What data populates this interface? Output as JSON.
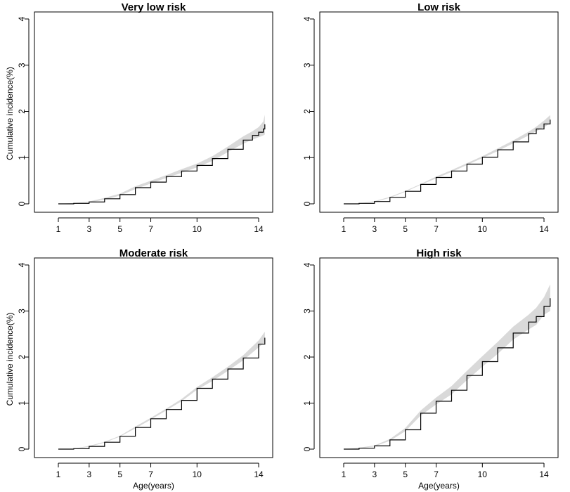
{
  "chart_data": [
    {
      "type": "line",
      "title": "Very low risk",
      "xlabel": "",
      "ylabel": "Cumulative incidence(%)",
      "xlim": [
        1,
        14.5
      ],
      "ylim": [
        0,
        4
      ],
      "xticks": [
        1,
        3,
        5,
        7,
        10,
        14
      ],
      "yticks": [
        0,
        1,
        2,
        3,
        4
      ],
      "grid": false,
      "series": [
        {
          "name": "estimate",
          "x": [
            1,
            2,
            3,
            4,
            5,
            6,
            7,
            8,
            9,
            10,
            11,
            12,
            13,
            13.6,
            14,
            14.3,
            14.4
          ],
          "y": [
            0,
            0.01,
            0.04,
            0.11,
            0.2,
            0.35,
            0.47,
            0.59,
            0.71,
            0.83,
            0.98,
            1.18,
            1.38,
            1.48,
            1.55,
            1.62,
            1.72
          ]
        },
        {
          "name": "ci_lower",
          "x": [
            1,
            2,
            3,
            4,
            5,
            6,
            7,
            8,
            9,
            10,
            11,
            12,
            13,
            13.6,
            14,
            14.3,
            14.4
          ],
          "y": [
            0,
            0.0,
            0.03,
            0.09,
            0.18,
            0.32,
            0.44,
            0.56,
            0.67,
            0.79,
            0.93,
            1.12,
            1.3,
            1.39,
            1.44,
            1.48,
            1.5
          ]
        },
        {
          "name": "ci_upper",
          "x": [
            1,
            2,
            3,
            4,
            5,
            6,
            7,
            8,
            9,
            10,
            11,
            12,
            13,
            13.6,
            14,
            14.3,
            14.4
          ],
          "y": [
            0,
            0.02,
            0.05,
            0.13,
            0.22,
            0.38,
            0.5,
            0.62,
            0.75,
            0.87,
            1.03,
            1.24,
            1.46,
            1.57,
            1.66,
            1.78,
            1.93
          ]
        }
      ]
    },
    {
      "type": "line",
      "title": "Low risk",
      "xlabel": "",
      "ylabel": "",
      "xlim": [
        1,
        14.5
      ],
      "ylim": [
        0,
        4
      ],
      "xticks": [
        1,
        3,
        5,
        7,
        10,
        14
      ],
      "yticks": [
        0,
        1,
        2,
        3,
        4
      ],
      "grid": false,
      "series": [
        {
          "name": "estimate",
          "x": [
            1,
            2,
            3,
            4,
            5,
            6,
            7,
            8,
            9,
            10,
            11,
            12,
            13,
            13.5,
            14,
            14.4
          ],
          "y": [
            0,
            0.01,
            0.05,
            0.14,
            0.27,
            0.42,
            0.57,
            0.71,
            0.86,
            1.01,
            1.17,
            1.34,
            1.52,
            1.62,
            1.73,
            1.82
          ]
        },
        {
          "name": "ci_lower",
          "x": [
            1,
            2,
            3,
            4,
            5,
            6,
            7,
            8,
            9,
            10,
            11,
            12,
            13,
            13.5,
            14,
            14.4
          ],
          "y": [
            0,
            0.01,
            0.04,
            0.13,
            0.26,
            0.41,
            0.55,
            0.69,
            0.84,
            0.99,
            1.14,
            1.31,
            1.48,
            1.57,
            1.66,
            1.74
          ]
        },
        {
          "name": "ci_upper",
          "x": [
            1,
            2,
            3,
            4,
            5,
            6,
            7,
            8,
            9,
            10,
            11,
            12,
            13,
            13.5,
            14,
            14.4
          ],
          "y": [
            0,
            0.01,
            0.06,
            0.15,
            0.28,
            0.43,
            0.59,
            0.73,
            0.88,
            1.03,
            1.2,
            1.37,
            1.56,
            1.67,
            1.8,
            1.92
          ]
        }
      ]
    },
    {
      "type": "line",
      "title": "Moderate risk",
      "xlabel": "Age(years)",
      "ylabel": "Cumulative incidence(%)",
      "xlim": [
        1,
        14.5
      ],
      "ylim": [
        0,
        4
      ],
      "xticks": [
        1,
        3,
        5,
        7,
        10,
        14
      ],
      "yticks": [
        0,
        1,
        2,
        3,
        4
      ],
      "grid": false,
      "series": [
        {
          "name": "estimate",
          "x": [
            1,
            2,
            3,
            4,
            5,
            6,
            7,
            8,
            9,
            10,
            11,
            12,
            13,
            14,
            14.4
          ],
          "y": [
            0,
            0.01,
            0.06,
            0.15,
            0.28,
            0.47,
            0.66,
            0.86,
            1.06,
            1.32,
            1.52,
            1.74,
            1.98,
            2.28,
            2.42
          ]
        },
        {
          "name": "ci_lower",
          "x": [
            1,
            2,
            3,
            4,
            5,
            6,
            7,
            8,
            9,
            10,
            11,
            12,
            13,
            14,
            14.4
          ],
          "y": [
            0,
            0.01,
            0.05,
            0.14,
            0.27,
            0.45,
            0.64,
            0.84,
            1.04,
            1.29,
            1.48,
            1.7,
            1.93,
            2.21,
            2.32
          ]
        },
        {
          "name": "ci_upper",
          "x": [
            1,
            2,
            3,
            4,
            5,
            6,
            7,
            8,
            9,
            10,
            11,
            12,
            13,
            14,
            14.4
          ],
          "y": [
            0,
            0.01,
            0.07,
            0.16,
            0.29,
            0.49,
            0.68,
            0.88,
            1.09,
            1.35,
            1.56,
            1.79,
            2.04,
            2.36,
            2.55
          ]
        }
      ]
    },
    {
      "type": "line",
      "title": "High risk",
      "xlabel": "Age(years)",
      "ylabel": "",
      "xlim": [
        1,
        14.5
      ],
      "ylim": [
        0,
        4
      ],
      "xticks": [
        1,
        3,
        5,
        7,
        10,
        14
      ],
      "yticks": [
        0,
        1,
        2,
        3,
        4
      ],
      "grid": false,
      "series": [
        {
          "name": "estimate",
          "x": [
            1,
            2,
            3,
            4,
            5,
            6,
            7,
            8,
            9,
            10,
            11,
            12,
            13,
            13.5,
            14,
            14.4
          ],
          "y": [
            0,
            0.02,
            0.07,
            0.2,
            0.42,
            0.78,
            1.04,
            1.28,
            1.6,
            1.9,
            2.2,
            2.52,
            2.76,
            2.88,
            3.1,
            3.28
          ]
        },
        {
          "name": "ci_lower",
          "x": [
            1,
            2,
            3,
            4,
            5,
            6,
            7,
            8,
            9,
            10,
            11,
            12,
            13,
            13.5,
            14,
            14.4
          ],
          "y": [
            0,
            0.01,
            0.06,
            0.18,
            0.39,
            0.73,
            0.97,
            1.19,
            1.5,
            1.79,
            2.07,
            2.38,
            2.6,
            2.7,
            2.92,
            3.0
          ]
        },
        {
          "name": "ci_upper",
          "x": [
            1,
            2,
            3,
            4,
            5,
            6,
            7,
            8,
            9,
            10,
            11,
            12,
            13,
            13.5,
            14,
            14.4
          ],
          "y": [
            0,
            0.03,
            0.08,
            0.22,
            0.46,
            0.84,
            1.12,
            1.37,
            1.7,
            2.02,
            2.33,
            2.66,
            2.92,
            3.07,
            3.3,
            3.58
          ]
        }
      ]
    }
  ],
  "colors": {
    "line": "#000000",
    "band": "#d9d9d9",
    "axis": "#000000",
    "background": "#ffffff"
  }
}
